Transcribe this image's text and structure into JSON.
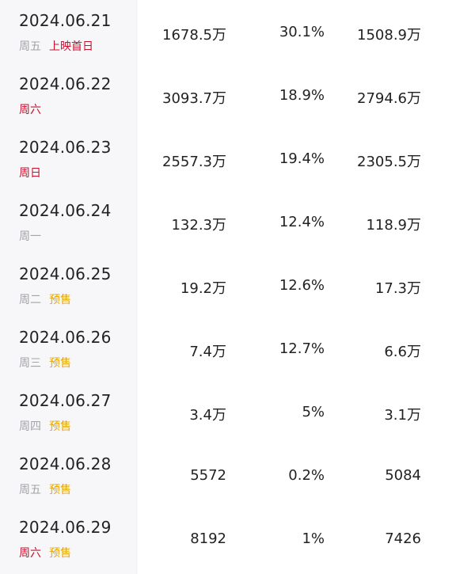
{
  "colors": {
    "weekend_red": "#c8102e",
    "presale_yellow": "#e6a700",
    "weekday_gray": "#a3a3a8",
    "text": "#222222"
  },
  "rows": [
    {
      "date": "2024.06.21",
      "weekday": "周五",
      "weekday_red": false,
      "tag": "上映首日",
      "tag_color": "red",
      "box_office": "1678.5万",
      "share": "30.1%",
      "split": "1508.9万"
    },
    {
      "date": "2024.06.22",
      "weekday": "周六",
      "weekday_red": true,
      "tag": "",
      "tag_color": "",
      "box_office": "3093.7万",
      "share": "18.9%",
      "split": "2794.6万"
    },
    {
      "date": "2024.06.23",
      "weekday": "周日",
      "weekday_red": true,
      "tag": "",
      "tag_color": "",
      "box_office": "2557.3万",
      "share": "19.4%",
      "split": "2305.5万"
    },
    {
      "date": "2024.06.24",
      "weekday": "周一",
      "weekday_red": false,
      "tag": "",
      "tag_color": "",
      "box_office": "132.3万",
      "share": "12.4%",
      "split": "118.9万"
    },
    {
      "date": "2024.06.25",
      "weekday": "周二",
      "weekday_red": false,
      "tag": "预售",
      "tag_color": "yellow",
      "box_office": "19.2万",
      "share": "12.6%",
      "split": "17.3万"
    },
    {
      "date": "2024.06.26",
      "weekday": "周三",
      "weekday_red": false,
      "tag": "预售",
      "tag_color": "yellow",
      "box_office": "7.4万",
      "share": "12.7%",
      "split": "6.6万"
    },
    {
      "date": "2024.06.27",
      "weekday": "周四",
      "weekday_red": false,
      "tag": "预售",
      "tag_color": "yellow",
      "box_office": "3.4万",
      "share": "5%",
      "split": "3.1万"
    },
    {
      "date": "2024.06.28",
      "weekday": "周五",
      "weekday_red": false,
      "tag": "预售",
      "tag_color": "yellow",
      "box_office": "5572",
      "share": "0.2%",
      "split": "5084"
    },
    {
      "date": "2024.06.29",
      "weekday": "周六",
      "weekday_red": true,
      "tag": "预售",
      "tag_color": "yellow",
      "box_office": "8192",
      "share": "1%",
      "split": "7426"
    }
  ]
}
